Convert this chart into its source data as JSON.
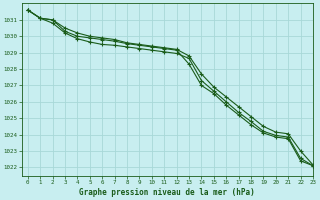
{
  "title": "Graphe pression niveau de la mer (hPa)",
  "background_color": "#c8eef0",
  "grid_color": "#a8d8d8",
  "line_color": "#1a5c1a",
  "xlim": [
    -0.5,
    23
  ],
  "ylim": [
    1021.5,
    1032.0
  ],
  "x_ticks": [
    0,
    1,
    2,
    3,
    4,
    5,
    6,
    7,
    8,
    9,
    10,
    11,
    12,
    13,
    14,
    15,
    16,
    17,
    18,
    19,
    20,
    21,
    22,
    23
  ],
  "y_ticks": [
    1022,
    1023,
    1024,
    1025,
    1026,
    1027,
    1028,
    1029,
    1030,
    1031
  ],
  "series1_x": [
    0,
    1,
    2,
    3,
    4,
    5,
    6,
    7,
    8,
    9,
    10,
    11,
    12,
    13,
    14,
    15,
    16,
    17,
    18,
    19,
    20,
    21,
    22,
    23
  ],
  "series1_y": [
    1031.6,
    1031.1,
    1031.0,
    1030.3,
    1030.0,
    1029.9,
    1029.8,
    1029.7,
    1029.55,
    1029.45,
    1029.35,
    1029.25,
    1029.15,
    1028.3,
    1027.0,
    1026.5,
    1025.8,
    1025.2,
    1024.6,
    1024.1,
    1023.85,
    1023.75,
    1022.4,
    1022.1
  ],
  "series2_x": [
    0,
    1,
    2,
    3,
    4,
    5,
    6,
    7,
    8,
    9,
    10,
    11,
    12,
    13,
    14,
    15,
    16,
    17,
    18,
    19,
    20,
    21,
    22,
    23
  ],
  "series2_y": [
    1031.6,
    1031.1,
    1031.0,
    1030.5,
    1030.2,
    1030.0,
    1029.9,
    1029.8,
    1029.6,
    1029.5,
    1029.4,
    1029.3,
    1029.2,
    1028.8,
    1027.7,
    1026.9,
    1026.3,
    1025.7,
    1025.1,
    1024.5,
    1024.15,
    1024.05,
    1023.0,
    1022.15
  ],
  "series3_x": [
    0,
    1,
    2,
    3,
    4,
    5,
    6,
    7,
    8,
    9,
    10,
    11,
    12,
    13,
    14,
    15,
    16,
    17,
    18,
    19,
    20,
    21,
    22,
    23
  ],
  "series3_y": [
    1031.6,
    1031.1,
    1030.8,
    1030.2,
    1029.85,
    1029.65,
    1029.5,
    1029.45,
    1029.35,
    1029.25,
    1029.15,
    1029.05,
    1028.95,
    1028.65,
    1027.3,
    1026.65,
    1026.0,
    1025.35,
    1024.8,
    1024.2,
    1023.95,
    1023.85,
    1022.55,
    1022.1
  ]
}
